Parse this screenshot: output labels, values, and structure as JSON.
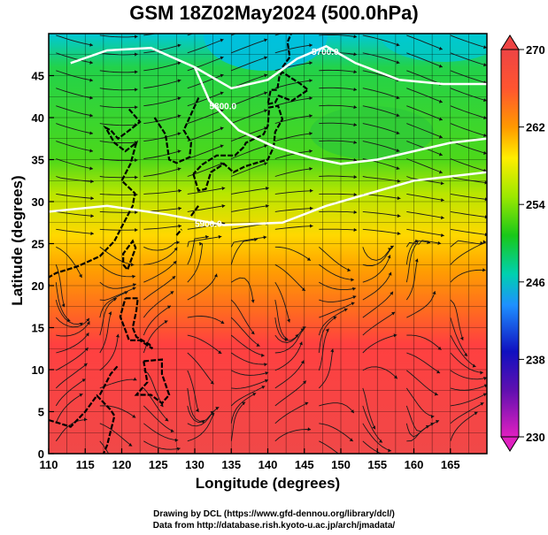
{
  "title": "GSM 18Z02May2024 (500.0hPa)",
  "map": {
    "x_label": "Longitude (degrees)",
    "y_label": "Latitude  (degrees)",
    "x_ticks": [
      "110",
      "115",
      "120",
      "125",
      "130",
      "135",
      "140",
      "145",
      "150",
      "155",
      "160",
      "165"
    ],
    "y_ticks": [
      "0",
      "5",
      "10",
      "15",
      "20",
      "25",
      "30",
      "35",
      "40",
      "45"
    ],
    "lon_range": [
      110,
      170
    ],
    "lat_range": [
      0,
      50
    ],
    "contours": [
      {
        "label": "5700.0",
        "level": 5700
      },
      {
        "label": "5800.0",
        "level": 5800
      },
      {
        "label": "5900.0",
        "level": 5900
      }
    ],
    "colorbar": {
      "ticks": [
        "270",
        "262",
        "254",
        "246",
        "238",
        "230"
      ],
      "range": [
        230,
        270
      ],
      "colors": [
        "#e020c0",
        "#1010c0",
        "#1e90ff",
        "#00d8d8",
        "#19c819",
        "#9be800",
        "#ffee00",
        "#ff9900",
        "#ff3333",
        "#ee4444"
      ]
    }
  },
  "credits": {
    "line1": "Drawing by DCL (https://www.gfd-dennou.org/library/dcl/)",
    "line2": "Data from http://database.rish.kyoto-u.ac.jp/arch/jmadata/"
  }
}
